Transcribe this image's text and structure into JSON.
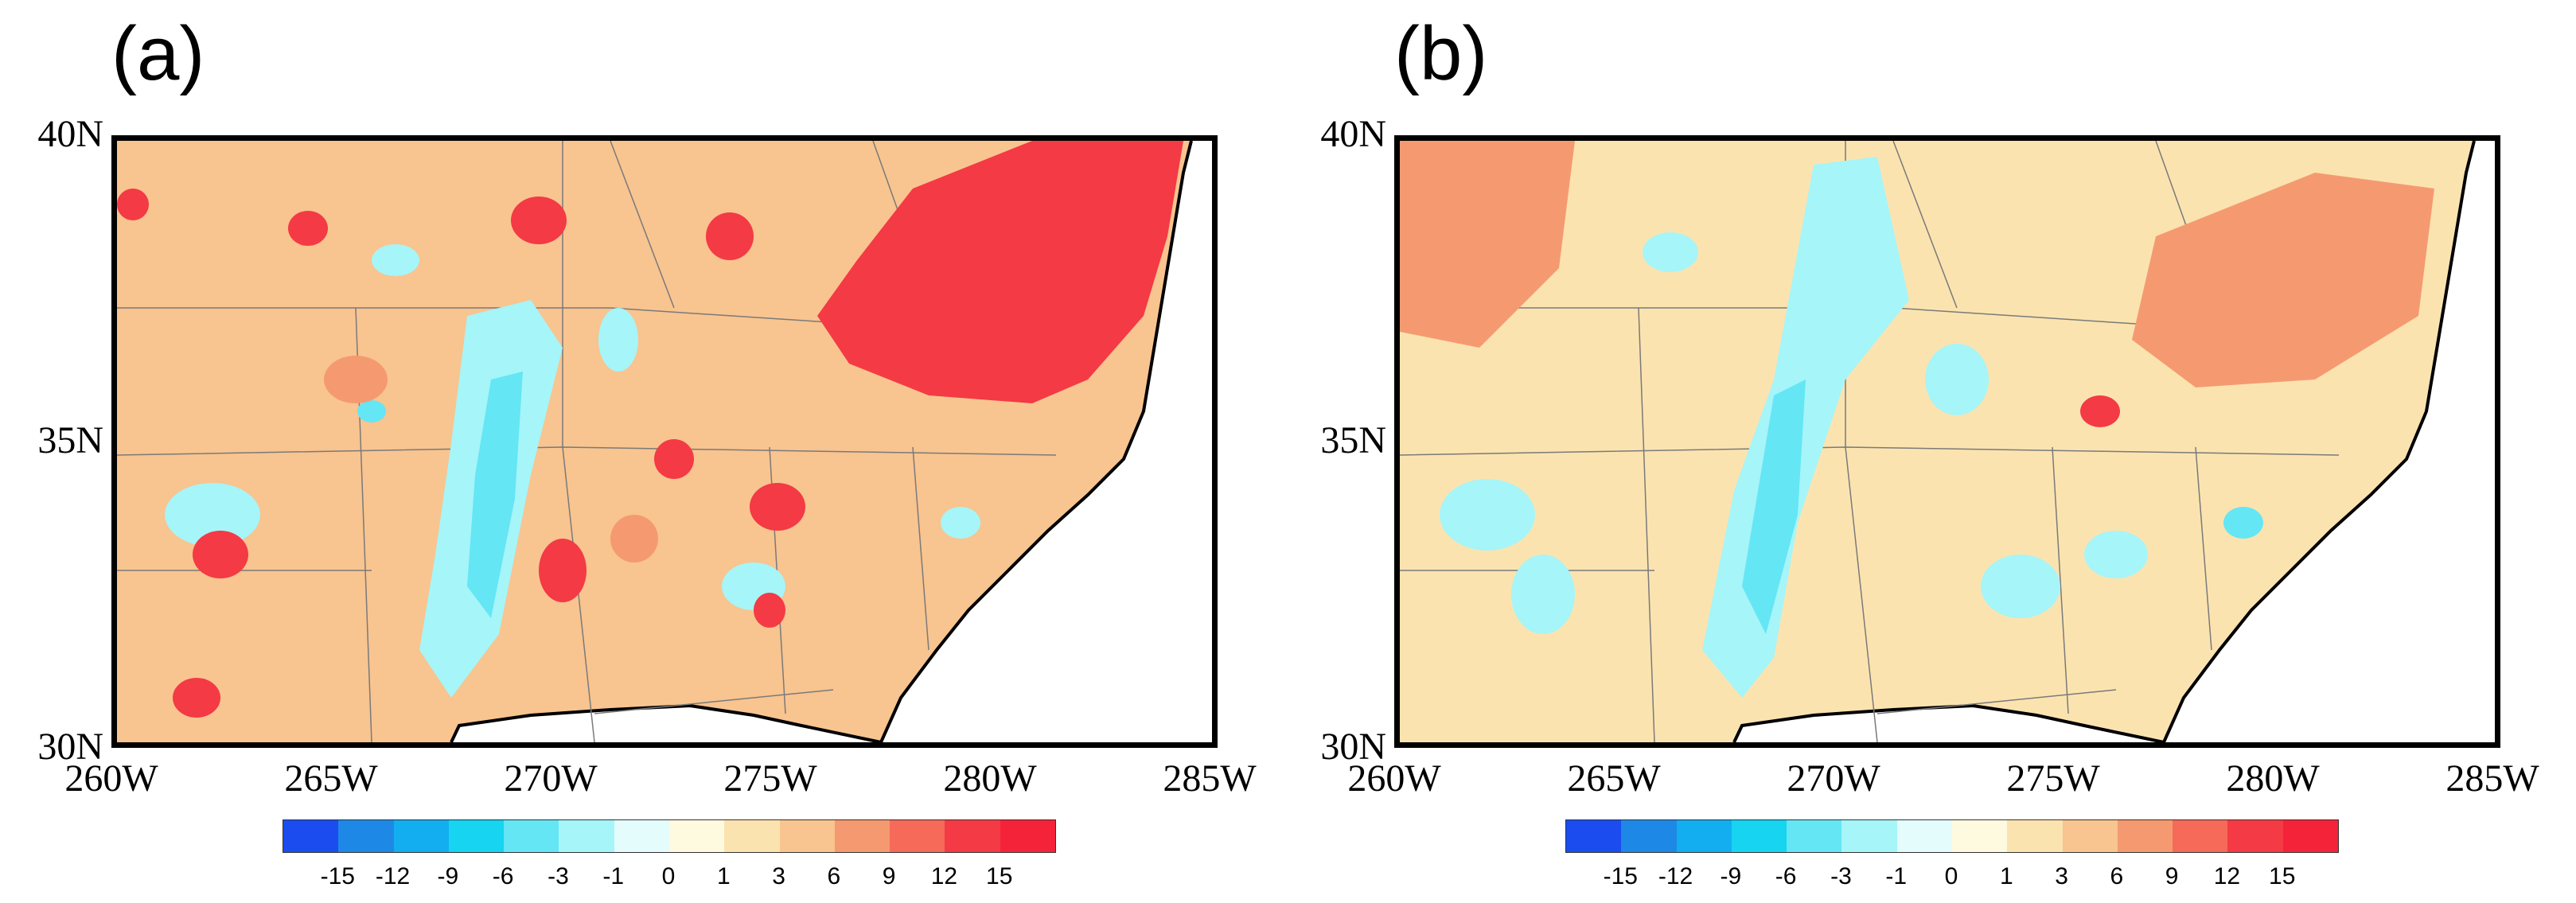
{
  "panels": [
    {
      "label": "(a)"
    },
    {
      "label": "(b)"
    }
  ],
  "axes": {
    "lat_labels": [
      "40N",
      "35N",
      "30N"
    ],
    "lon_labels": [
      "260W",
      "265W",
      "270W",
      "275W",
      "280W",
      "285W"
    ]
  },
  "colorbar": {
    "labels": [
      "-15",
      "-12",
      "-9",
      "-6",
      "-3",
      "-1",
      "0",
      "1",
      "3",
      "6",
      "9",
      "12",
      "15"
    ],
    "colors": [
      "#1a4cf0",
      "#1e88e6",
      "#12aef0",
      "#17d4f0",
      "#64e6f5",
      "#a6f5f8",
      "#e4fcfc",
      "#fdfae0",
      "#fbe3b0",
      "#f8c490",
      "#f59a70",
      "#f66a5a",
      "#f43a44",
      "#f5233a"
    ]
  },
  "colors": {
    "ocean": "#ffffff",
    "land_base_a": "#f8c490",
    "land_base_b": "#fbe3b0",
    "warm_strong": "#f43a44",
    "warm_mid": "#f59a70",
    "cool_light": "#a6f5f8",
    "cool_mid": "#64e6f5",
    "cool_strong": "#1e88e6",
    "border": "#7a7a7a",
    "coast": "#000000"
  }
}
